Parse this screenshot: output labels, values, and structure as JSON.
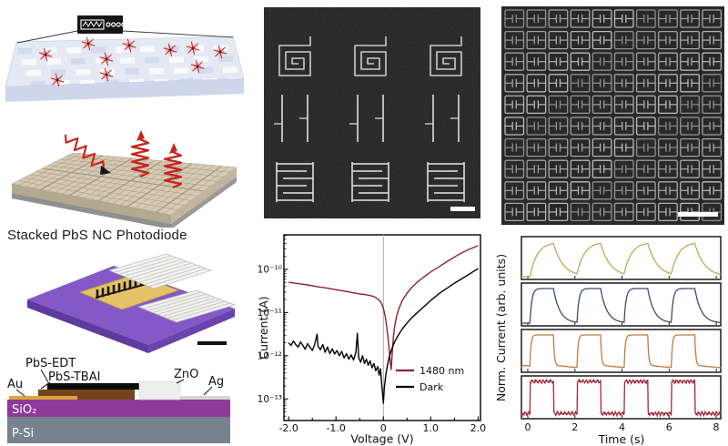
{
  "figure": {
    "background": "#ffffff",
    "panels": {
      "printing_illustration": {
        "name": "nanocrystal-printing-schematic"
      },
      "emission_illustration": {
        "name": "printed-chip-light-schematic"
      },
      "photodiode": {
        "title": "Stacked PbS NC Photodiode",
        "layer_labels": {
          "au": "Au",
          "pbs_edt": "PbS-EDT",
          "pbs_tbai": "PbS-TBAI",
          "zno": "ZnO",
          "ag": "Ag",
          "sio2": "SiO₂",
          "psi": "P-Si"
        }
      },
      "sem_patterns": {
        "columns": 3,
        "pattern_rows": [
          "square-spiral",
          "wire-pair",
          "interdigitated-comb"
        ]
      },
      "sem_array": {
        "rows": 10,
        "cols": 10
      }
    }
  },
  "colors": {
    "curve_1480nm": "#8b2331",
    "curve_dark": "#000000",
    "trace_yellow": "#c2a958",
    "trace_blue": "#3e4b70",
    "trace_orange": "#c07c3d",
    "trace_red": "#a3273a",
    "substrate_purple": "#8459c7",
    "sio2_purple": "#8d3a99",
    "psi_gray": "#77828e",
    "gold": "#d9a63c",
    "pbs_brown": "#74451c",
    "zno_white": "#eeeeec",
    "ag_gray": "#d6d6d3",
    "sem_background": "#1e1e1e"
  },
  "chart_data": [
    {
      "type": "line",
      "title": "",
      "xlabel": "Voltage (V)",
      "ylabel": "Current (A)",
      "xlim": [
        -2.1,
        2.05
      ],
      "ylog": true,
      "ylim_log10": [
        -13.5,
        -9.2
      ],
      "xticks": [
        -2.0,
        -1.0,
        0,
        1.0,
        2.0
      ],
      "xtick_labels": [
        "-2.0",
        "-1.0",
        "0",
        "1.0",
        "2.0"
      ],
      "ytick_exponents": [
        -10,
        -11,
        -12,
        -13
      ],
      "ytick_labels": [
        "10⁻¹⁰",
        "10⁻¹¹",
        "10⁻¹²",
        "10⁻¹³"
      ],
      "zero_voltage_line": true,
      "legend_position": "lower right",
      "series": [
        {
          "name": "1480 nm",
          "color": "#8b2331",
          "points_v_log10A": [
            [
              -2.0,
              -10.3
            ],
            [
              -1.8,
              -10.33
            ],
            [
              -1.6,
              -10.36
            ],
            [
              -1.4,
              -10.4
            ],
            [
              -1.2,
              -10.43
            ],
            [
              -1.0,
              -10.47
            ],
            [
              -0.8,
              -10.51
            ],
            [
              -0.6,
              -10.55
            ],
            [
              -0.5,
              -10.57
            ],
            [
              -0.4,
              -10.58
            ],
            [
              -0.3,
              -10.6
            ],
            [
              -0.2,
              -10.63
            ],
            [
              -0.15,
              -10.66
            ],
            [
              -0.1,
              -10.7
            ],
            [
              -0.05,
              -10.77
            ],
            [
              0.0,
              -10.9
            ],
            [
              0.04,
              -11.1
            ],
            [
              0.07,
              -11.32
            ],
            [
              0.1,
              -11.6
            ],
            [
              0.12,
              -11.82
            ],
            [
              0.14,
              -12.08
            ],
            [
              0.155,
              -12.26
            ],
            [
              0.165,
              -12.32
            ],
            [
              0.175,
              -12.16
            ],
            [
              0.19,
              -11.88
            ],
            [
              0.21,
              -11.58
            ],
            [
              0.24,
              -11.3
            ],
            [
              0.28,
              -11.08
            ],
            [
              0.33,
              -10.9
            ],
            [
              0.4,
              -10.72
            ],
            [
              0.5,
              -10.55
            ],
            [
              0.6,
              -10.42
            ],
            [
              0.7,
              -10.31
            ],
            [
              0.85,
              -10.18
            ],
            [
              1.0,
              -10.06
            ],
            [
              1.2,
              -9.92
            ],
            [
              1.4,
              -9.78
            ],
            [
              1.6,
              -9.65
            ],
            [
              1.8,
              -9.54
            ],
            [
              2.0,
              -9.45
            ]
          ]
        },
        {
          "name": "Dark",
          "color": "#000000",
          "points_v_log10A": [
            [
              -2.0,
              -11.7
            ],
            [
              -1.95,
              -11.76
            ],
            [
              -1.9,
              -11.66
            ],
            [
              -1.85,
              -11.74
            ],
            [
              -1.8,
              -11.8
            ],
            [
              -1.75,
              -11.68
            ],
            [
              -1.7,
              -11.76
            ],
            [
              -1.65,
              -11.85
            ],
            [
              -1.6,
              -11.72
            ],
            [
              -1.55,
              -11.8
            ],
            [
              -1.5,
              -11.88
            ],
            [
              -1.45,
              -11.74
            ],
            [
              -1.4,
              -11.5
            ],
            [
              -1.38,
              -11.78
            ],
            [
              -1.33,
              -11.86
            ],
            [
              -1.28,
              -11.74
            ],
            [
              -1.23,
              -11.92
            ],
            [
              -1.18,
              -11.8
            ],
            [
              -1.13,
              -11.95
            ],
            [
              -1.08,
              -11.84
            ],
            [
              -1.03,
              -11.96
            ],
            [
              -0.98,
              -11.88
            ],
            [
              -0.93,
              -12.0
            ],
            [
              -0.88,
              -11.9
            ],
            [
              -0.83,
              -12.05
            ],
            [
              -0.78,
              -11.95
            ],
            [
              -0.73,
              -12.08
            ],
            [
              -0.68,
              -11.98
            ],
            [
              -0.63,
              -12.1
            ],
            [
              -0.58,
              -11.92
            ],
            [
              -0.55,
              -11.48
            ],
            [
              -0.52,
              -12.05
            ],
            [
              -0.48,
              -12.15
            ],
            [
              -0.44,
              -12.0
            ],
            [
              -0.4,
              -12.18
            ],
            [
              -0.36,
              -12.08
            ],
            [
              -0.32,
              -12.22
            ],
            [
              -0.28,
              -12.12
            ],
            [
              -0.24,
              -12.28
            ],
            [
              -0.2,
              -12.18
            ],
            [
              -0.16,
              -12.35
            ],
            [
              -0.12,
              -12.25
            ],
            [
              -0.09,
              -12.45
            ],
            [
              -0.06,
              -12.3
            ],
            [
              -0.04,
              -12.6
            ],
            [
              -0.02,
              -12.85
            ],
            [
              0.0,
              -13.1
            ],
            [
              0.02,
              -12.75
            ],
            [
              0.05,
              -12.45
            ],
            [
              0.08,
              -12.25
            ],
            [
              0.12,
              -12.05
            ],
            [
              0.16,
              -11.9
            ],
            [
              0.2,
              -11.78
            ],
            [
              0.25,
              -11.65
            ],
            [
              0.3,
              -11.55
            ],
            [
              0.4,
              -11.38
            ],
            [
              0.5,
              -11.24
            ],
            [
              0.6,
              -11.12
            ],
            [
              0.7,
              -11.02
            ],
            [
              0.8,
              -10.92
            ],
            [
              0.9,
              -10.82
            ],
            [
              1.0,
              -10.72
            ],
            [
              1.1,
              -10.63
            ],
            [
              1.2,
              -10.54
            ],
            [
              1.35,
              -10.43
            ],
            [
              1.5,
              -10.32
            ],
            [
              1.65,
              -10.22
            ],
            [
              1.8,
              -10.12
            ],
            [
              1.9,
              -10.05
            ],
            [
              2.0,
              -9.98
            ]
          ]
        }
      ]
    },
    {
      "type": "line",
      "title": "",
      "xlabel": "Time (s)",
      "ylabel": "Norm. Current (arb. units)",
      "xticks": [
        0,
        2,
        4,
        6,
        8
      ],
      "xtick_labels": [
        "0",
        "2",
        "4",
        "6",
        "8"
      ],
      "x_range_s": [
        -0.27,
        8.19
      ],
      "pulse": {
        "first_on_s": 0.1,
        "period_s": 2.0,
        "on_s": 1.0,
        "cycles": 4
      },
      "panels": [
        {
          "name": "trace-1",
          "color": "#c2a958",
          "rise_tau_s": 0.32,
          "decay_tau_s": 0.42,
          "tail_level": 0,
          "tail_tau_s": 1.0,
          "noise": 0
        },
        {
          "name": "trace-2",
          "color": "#3e4b70",
          "rise_tau_s": 0.09,
          "decay_tau_s": 0.28,
          "tail_level": 0,
          "tail_tau_s": 1.0,
          "noise": 0
        },
        {
          "name": "trace-3",
          "color": "#c07c3d",
          "rise_tau_s": 0.055,
          "decay_tau_s": 0.05,
          "tail_level": 0.13,
          "tail_tau_s": 1.3,
          "noise": 0
        },
        {
          "name": "trace-4",
          "color": "#a3273a",
          "rise_tau_s": 0.02,
          "decay_tau_s": 0.02,
          "tail_level": 0.07,
          "tail_tau_s": 99,
          "noise": 0.035
        }
      ]
    }
  ]
}
